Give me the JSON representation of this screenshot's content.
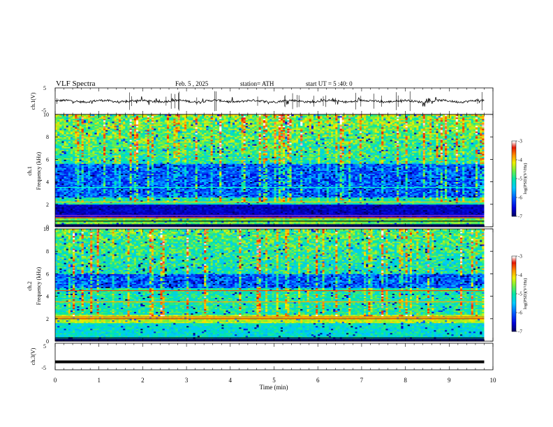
{
  "header": {
    "title": "VLF Spectra",
    "date": "Feb. 5 , 2025",
    "station": "station= ATH",
    "start_time": "start UT = 5 :40: 0"
  },
  "chart_data": [
    {
      "type": "line",
      "panel": "ch1-waveform",
      "ylabel": "ch.1(V)",
      "ylim": [
        -5,
        5
      ],
      "yticks": [
        "5",
        "-5"
      ],
      "xlim": [
        0,
        10
      ],
      "series": [
        {
          "values_description_note": "",
          "baseline": 0.0,
          "noise_amplitude": 0.4,
          "spike_amplitude": 1.6,
          "x_end": 9.8
        }
      ]
    },
    {
      "type": "heatmap",
      "panel": "ch1-spectrogram",
      "ylabel": "ch.1 Frequency (kHz)",
      "ylim": [
        0,
        10
      ],
      "yticks": [
        "0",
        "2",
        "4",
        "6",
        "8",
        "10"
      ],
      "xlim": [
        0,
        10
      ],
      "x_end": 9.8,
      "colorbar": {
        "label": "log(PSD)(V²/Hz)",
        "range": [
          -7,
          -3
        ],
        "ticks": [
          "-3",
          "-4",
          "-5",
          "-6",
          "-7"
        ]
      }
    },
    {
      "type": "heatmap",
      "panel": "ch2-spectrogram",
      "ylabel": "ch.2 Frequency (kHz)",
      "ylim": [
        0,
        10
      ],
      "yticks": [
        "0",
        "2",
        "4",
        "6",
        "8",
        "10"
      ],
      "xlim": [
        0,
        10
      ],
      "x_end": 9.8,
      "colorbar": {
        "label": "log(PSD)(V²/Hz)",
        "range": [
          -7,
          -3
        ],
        "ticks": [
          "-3",
          "-4",
          "-5",
          "-6",
          "-7"
        ]
      }
    },
    {
      "type": "line",
      "panel": "ch3-waveform",
      "ylabel": "ch.3(V)",
      "ylim": [
        -5,
        5
      ],
      "yticks": [
        "5",
        "-5"
      ],
      "xlim": [
        0,
        10
      ],
      "series": [
        {
          "baseline": -2.0,
          "x_end": 9.8
        }
      ]
    }
  ],
  "xaxis": {
    "label": "Time (min)",
    "ticks": [
      "0",
      "1",
      "2",
      "3",
      "4",
      "5",
      "6",
      "7",
      "8",
      "9",
      "10"
    ]
  }
}
